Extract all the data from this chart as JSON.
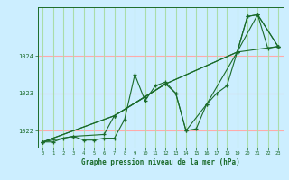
{
  "title": "Graphe pression niveau de la mer (hPa)",
  "bg_color": "#cceeff",
  "line_color": "#1a6b2a",
  "xlim": [
    -0.5,
    23.5
  ],
  "ylim": [
    1021.55,
    1025.3
  ],
  "yticks": [
    1022,
    1023,
    1024
  ],
  "xticks": [
    0,
    1,
    2,
    3,
    4,
    5,
    6,
    7,
    8,
    9,
    10,
    11,
    12,
    13,
    14,
    15,
    16,
    17,
    18,
    19,
    20,
    21,
    22,
    23
  ],
  "hgrid_color": "#ffaaaa",
  "vgrid_color": "#aaddaa",
  "series": [
    {
      "x": [
        0,
        1,
        2,
        3,
        4,
        5,
        6,
        7,
        8,
        9,
        10,
        11,
        12,
        13,
        14,
        15,
        16,
        17,
        18,
        19,
        20,
        21,
        22,
        23
      ],
      "y": [
        1021.7,
        1021.7,
        1021.8,
        1021.85,
        1021.75,
        1021.75,
        1021.8,
        1021.8,
        1022.3,
        1023.5,
        1022.8,
        1023.2,
        1023.3,
        1023.0,
        1022.0,
        1022.05,
        1022.7,
        1023.0,
        1023.2,
        1024.1,
        1025.05,
        1025.1,
        1024.2,
        1024.25
      ]
    },
    {
      "x": [
        0,
        3,
        6,
        7,
        10,
        12,
        13,
        14,
        16,
        19,
        20,
        21,
        23
      ],
      "y": [
        1021.7,
        1021.85,
        1021.9,
        1022.4,
        1022.9,
        1023.25,
        1023.0,
        1022.0,
        1022.7,
        1024.1,
        1025.05,
        1025.1,
        1024.25
      ]
    },
    {
      "x": [
        0,
        7,
        12,
        19,
        23
      ],
      "y": [
        1021.7,
        1022.4,
        1023.25,
        1024.1,
        1024.25
      ]
    },
    {
      "x": [
        0,
        7,
        12,
        19,
        21,
        23
      ],
      "y": [
        1021.7,
        1022.4,
        1023.25,
        1024.1,
        1025.1,
        1024.25
      ]
    }
  ]
}
